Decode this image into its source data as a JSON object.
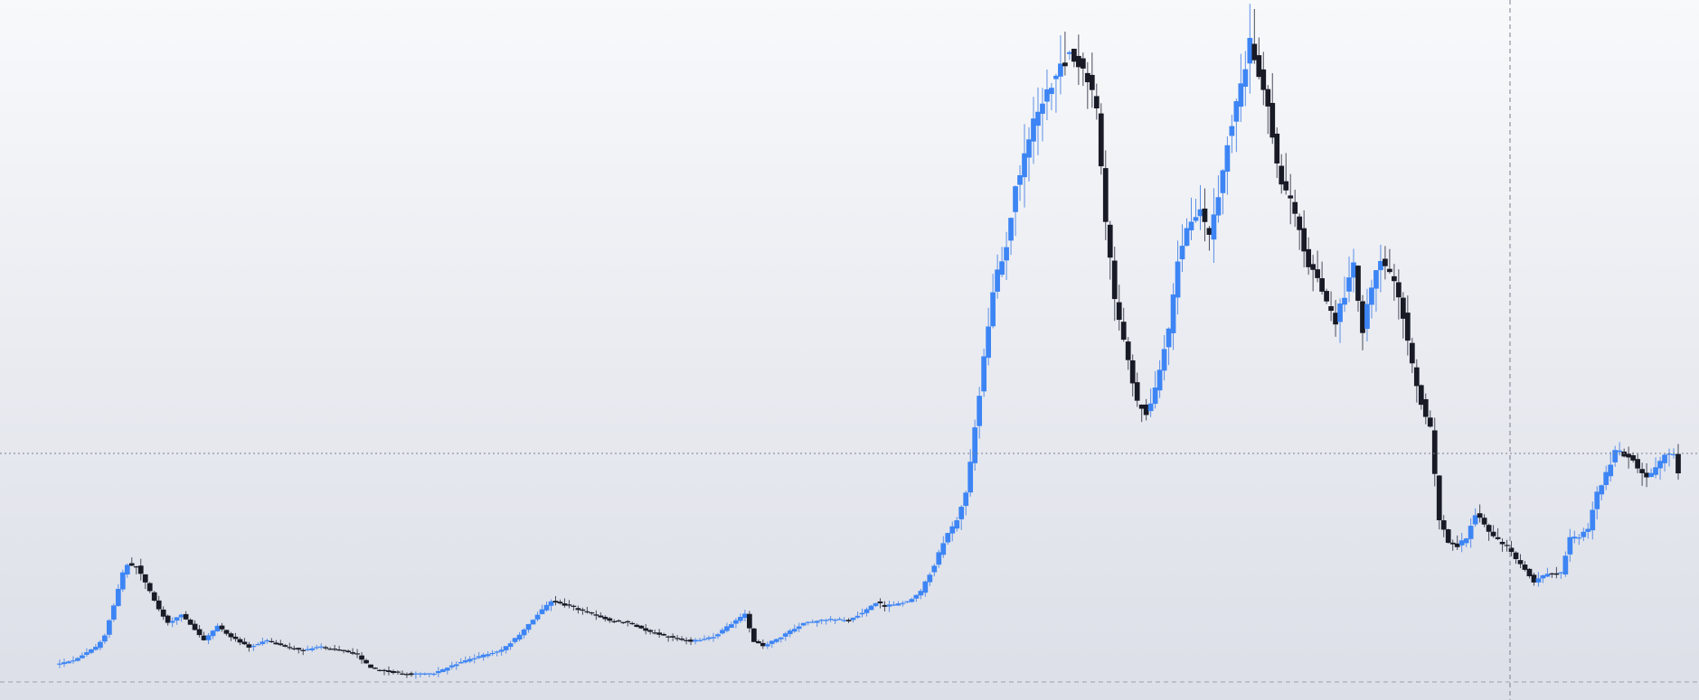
{
  "chart_data": {
    "type": "candlestick",
    "title": "",
    "xlabel": "",
    "ylabel": "",
    "grid": false,
    "ylim": [
      0,
      775
    ],
    "candle_count": 360,
    "price_profile": [
      [
        0,
        40
      ],
      [
        3,
        44
      ],
      [
        8,
        58
      ],
      [
        10,
        72
      ],
      [
        12,
        105
      ],
      [
        14,
        140
      ],
      [
        15,
        150
      ],
      [
        17,
        148
      ],
      [
        19,
        130
      ],
      [
        22,
        100
      ],
      [
        24,
        85
      ],
      [
        27,
        95
      ],
      [
        30,
        78
      ],
      [
        32,
        66
      ],
      [
        35,
        82
      ],
      [
        38,
        70
      ],
      [
        42,
        58
      ],
      [
        46,
        66
      ],
      [
        49,
        60
      ],
      [
        54,
        55
      ],
      [
        58,
        58
      ],
      [
        63,
        55
      ],
      [
        66,
        50
      ],
      [
        69,
        35
      ],
      [
        72,
        32
      ],
      [
        78,
        28
      ],
      [
        83,
        29
      ],
      [
        88,
        40
      ],
      [
        93,
        48
      ],
      [
        98,
        55
      ],
      [
        102,
        72
      ],
      [
        106,
        95
      ],
      [
        109,
        110
      ],
      [
        113,
        104
      ],
      [
        118,
        95
      ],
      [
        122,
        88
      ],
      [
        126,
        86
      ],
      [
        131,
        75
      ],
      [
        135,
        70
      ],
      [
        140,
        65
      ],
      [
        145,
        70
      ],
      [
        150,
        88
      ],
      [
        152,
        95
      ],
      [
        154,
        65
      ],
      [
        156,
        60
      ],
      [
        160,
        70
      ],
      [
        165,
        85
      ],
      [
        170,
        88
      ],
      [
        175,
        88
      ],
      [
        178,
        97
      ],
      [
        181,
        108
      ],
      [
        183,
        104
      ],
      [
        188,
        108
      ],
      [
        191,
        120
      ],
      [
        194,
        150
      ],
      [
        196,
        175
      ],
      [
        199,
        200
      ],
      [
        201,
        230
      ],
      [
        203,
        300
      ],
      [
        205,
        380
      ],
      [
        207,
        455
      ],
      [
        210,
        505
      ],
      [
        212,
        565
      ],
      [
        214,
        600
      ],
      [
        216,
        640
      ],
      [
        218,
        660
      ],
      [
        221,
        695
      ],
      [
        224,
        715
      ],
      [
        226,
        708
      ],
      [
        228,
        690
      ],
      [
        230,
        650
      ],
      [
        232,
        530
      ],
      [
        234,
        440
      ],
      [
        237,
        375
      ],
      [
        239,
        330
      ],
      [
        241,
        318
      ],
      [
        243,
        345
      ],
      [
        246,
        410
      ],
      [
        248,
        485
      ],
      [
        251,
        535
      ],
      [
        253,
        545
      ],
      [
        255,
        510
      ],
      [
        257,
        560
      ],
      [
        259,
        620
      ],
      [
        262,
        680
      ],
      [
        264,
        728
      ],
      [
        266,
        695
      ],
      [
        268,
        655
      ],
      [
        270,
        590
      ],
      [
        272,
        560
      ],
      [
        274,
        540
      ],
      [
        277,
        480
      ],
      [
        279,
        465
      ],
      [
        281,
        440
      ],
      [
        283,
        420
      ],
      [
        285,
        450
      ],
      [
        287,
        480
      ],
      [
        289,
        410
      ],
      [
        291,
        460
      ],
      [
        293,
        490
      ],
      [
        296,
        460
      ],
      [
        298,
        425
      ],
      [
        300,
        370
      ],
      [
        302,
        330
      ],
      [
        304,
        300
      ],
      [
        306,
        200
      ],
      [
        308,
        175
      ],
      [
        310,
        170
      ],
      [
        312,
        180
      ],
      [
        314,
        205
      ],
      [
        316,
        195
      ],
      [
        318,
        180
      ],
      [
        321,
        170
      ],
      [
        323,
        155
      ],
      [
        325,
        145
      ],
      [
        327,
        130
      ],
      [
        330,
        140
      ],
      [
        333,
        140
      ],
      [
        335,
        180
      ],
      [
        337,
        180
      ],
      [
        339,
        190
      ],
      [
        341,
        230
      ],
      [
        343,
        250
      ],
      [
        345,
        275
      ],
      [
        347,
        272
      ],
      [
        349,
        265
      ],
      [
        352,
        245
      ],
      [
        354,
        255
      ],
      [
        356,
        270
      ],
      [
        358,
        270
      ],
      [
        359,
        250
      ]
    ],
    "colors": {
      "up": "#3d85f5",
      "down": "#181b26",
      "wick": "#4a4e5c",
      "crosshair": "#7a7f8c",
      "baseline": "#9ca0ab"
    }
  }
}
